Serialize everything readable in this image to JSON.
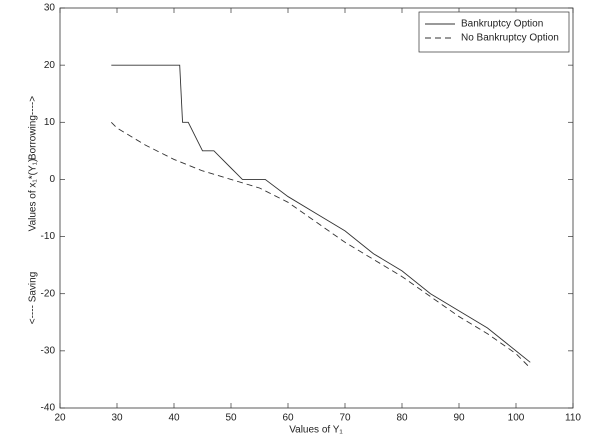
{
  "chart_data": {
    "type": "line",
    "xlabel": "Values of Y₁",
    "ylabel_parts": [
      "<---- Saving",
      "Values of x₁*(Y₁)",
      "Borrowing---->"
    ],
    "xlim": [
      20,
      110
    ],
    "xticks": [
      20,
      30,
      40,
      50,
      60,
      70,
      80,
      90,
      100,
      110
    ],
    "ylim": [
      -40,
      30
    ],
    "yticks": [
      -40,
      -30,
      -20,
      -10,
      0,
      10,
      20,
      30
    ],
    "legend": "upper right",
    "series": [
      {
        "name": "Bankruptcy Option",
        "color": "#333333",
        "dash": "solid",
        "x": [
          29,
          41,
          41.5,
          42.5,
          44,
          45,
          47,
          48,
          50,
          51,
          52,
          56,
          60,
          65,
          70,
          75,
          80,
          85,
          90,
          95,
          100,
          102.5
        ],
        "values": [
          20,
          20,
          10,
          10,
          7,
          5,
          5,
          4,
          2,
          1,
          0,
          0,
          -3,
          -6,
          -9,
          -13,
          -16,
          -20,
          -23,
          -26,
          -30,
          -32
        ]
      },
      {
        "name": "No Bankruptcy Option",
        "color": "#333333",
        "dash": "dashed",
        "x": [
          29,
          30,
          35,
          40,
          45,
          50,
          55,
          60,
          65,
          70,
          75,
          80,
          85,
          90,
          95,
          100,
          102.5
        ],
        "values": [
          10,
          9,
          6,
          3.5,
          1.5,
          0,
          -1.5,
          -4,
          -7.5,
          -11,
          -14,
          -17,
          -20.5,
          -24,
          -27,
          -30.5,
          -33
        ]
      }
    ]
  }
}
